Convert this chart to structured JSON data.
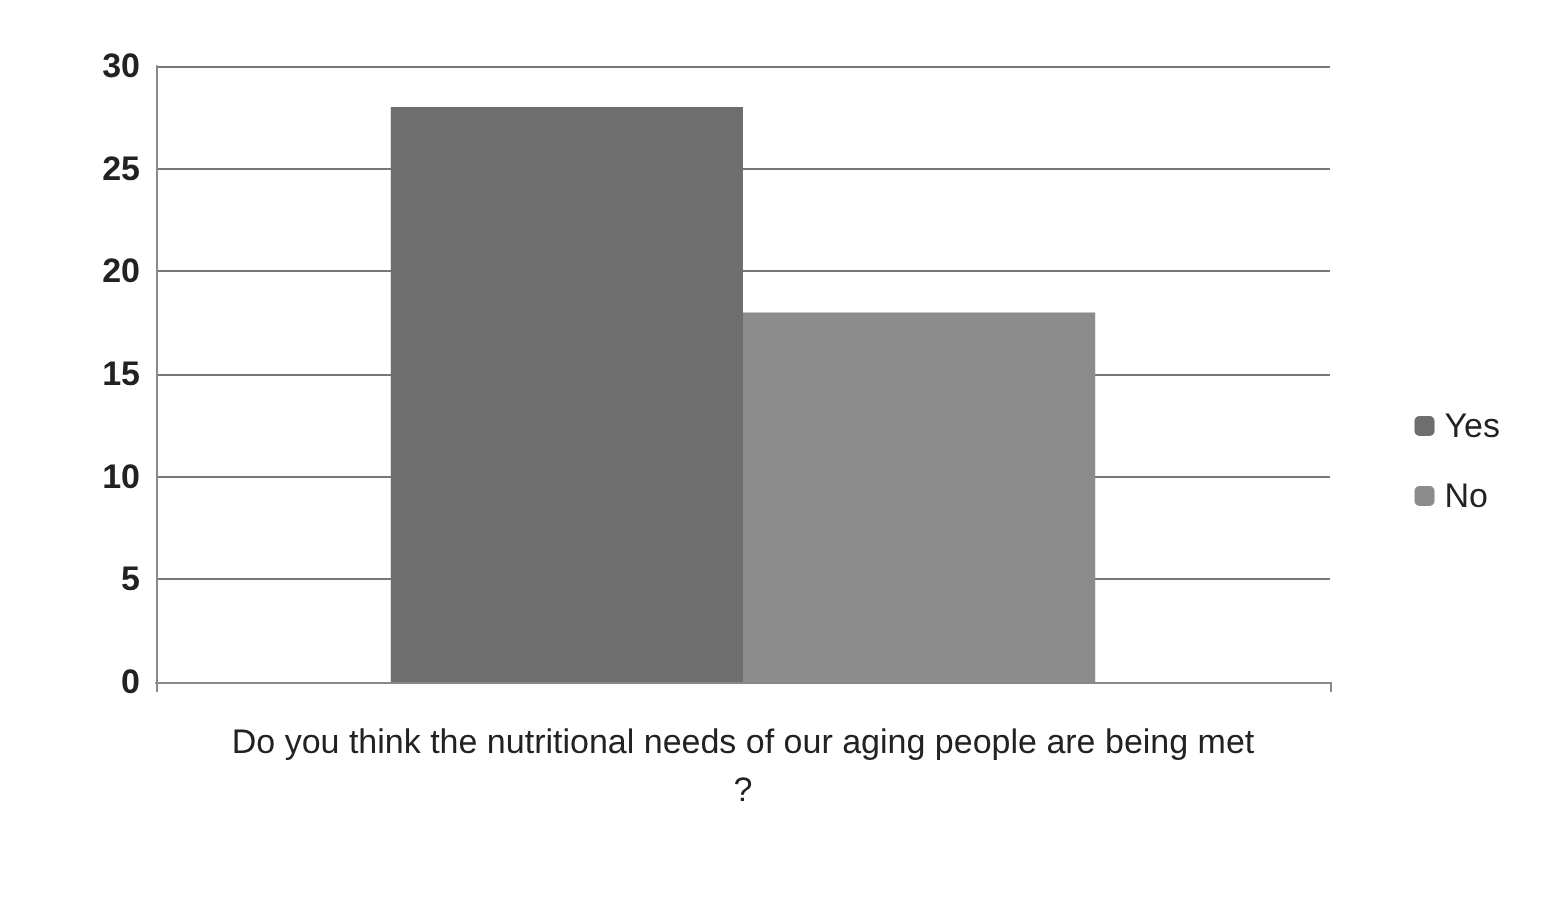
{
  "chart_data": {
    "type": "bar",
    "categories": [
      "Do you think the nutritional needs of our aging people are being met?"
    ],
    "series": [
      {
        "name": "Yes",
        "color": "#6e6e6e",
        "values": [
          28
        ]
      },
      {
        "name": "No",
        "color": "#8c8c8c",
        "values": [
          18
        ]
      }
    ],
    "ylim": [
      0,
      30
    ],
    "yticks": [
      0,
      5,
      10,
      15,
      20,
      25,
      30
    ],
    "grid": "y",
    "legend": "right"
  }
}
